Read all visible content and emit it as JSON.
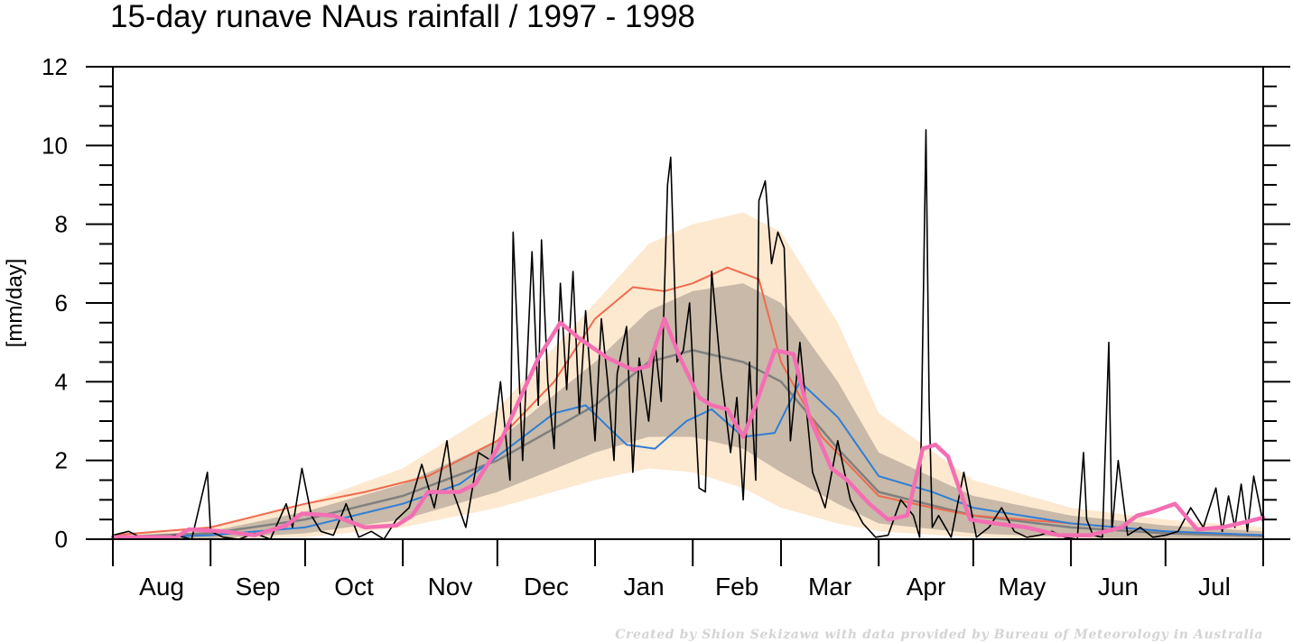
{
  "chart_data": {
    "type": "line",
    "title": "15-day runave NAus rainfall  /  1997 - 1998",
    "ylabel": "[mm/day]",
    "xlabel": "",
    "xlim": [
      0,
      365
    ],
    "ylim": [
      0,
      12
    ],
    "y_ticks": [
      0,
      2,
      4,
      6,
      8,
      10,
      12
    ],
    "y_tick_labels": [
      "0",
      "2",
      "4",
      "6",
      "8",
      "10",
      "12"
    ],
    "month_starts": [
      0,
      31,
      61,
      92,
      122,
      153,
      184,
      212,
      243,
      273,
      304,
      334,
      365
    ],
    "month_labels": [
      "Aug",
      "Sep",
      "Oct",
      "Nov",
      "Dec",
      "Jan",
      "Feb",
      "Mar",
      "Apr",
      "May",
      "Jun",
      "Jul"
    ],
    "credit": "Created by Shion Sekizawa with data provided by Bureau of Meteorology in Australia",
    "colors": {
      "outer_band": "#fde8d0",
      "inner_band": "#c8b9a8",
      "climatology_mean": "#808080",
      "upper_percentile": "#ef6b4f",
      "lower_percentile": "#2f7fd6",
      "runave": "#f46eb3",
      "daily": "#000000"
    },
    "bands": [
      {
        "name": "outer",
        "x": [
          0,
          31,
          61,
          92,
          122,
          153,
          170,
          184,
          200,
          212,
          230,
          243,
          273,
          304,
          334,
          365
        ],
        "upper": [
          0.1,
          0.3,
          0.9,
          1.8,
          3.3,
          6.0,
          7.5,
          8.0,
          8.3,
          7.8,
          5.5,
          3.2,
          1.5,
          0.8,
          0.5,
          0.3
        ],
        "lower": [
          0.0,
          0.0,
          0.05,
          0.3,
          0.8,
          1.5,
          1.8,
          1.7,
          1.3,
          0.8,
          0.4,
          0.2,
          0.05,
          0.0,
          0.0,
          0.0
        ]
      },
      {
        "name": "inner",
        "x": [
          0,
          31,
          61,
          92,
          122,
          153,
          170,
          184,
          200,
          212,
          230,
          243,
          273,
          304,
          334,
          365
        ],
        "upper": [
          0.08,
          0.2,
          0.7,
          1.4,
          2.5,
          4.5,
          5.8,
          6.3,
          6.5,
          6.0,
          4.0,
          2.2,
          1.1,
          0.6,
          0.35,
          0.2
        ],
        "lower": [
          0.0,
          0.02,
          0.15,
          0.5,
          1.2,
          2.2,
          2.6,
          2.6,
          2.3,
          1.7,
          0.9,
          0.4,
          0.15,
          0.05,
          0.0,
          0.0
        ]
      }
    ],
    "series": [
      {
        "name": "",
        "role": "climatology_mean",
        "x": [
          0,
          31,
          61,
          92,
          122,
          153,
          170,
          184,
          200,
          212,
          230,
          243,
          273,
          304,
          334,
          365
        ],
        "values": [
          0.05,
          0.15,
          0.5,
          1.1,
          2.0,
          3.4,
          4.5,
          4.8,
          4.5,
          4.0,
          2.3,
          1.2,
          0.6,
          0.3,
          0.15,
          0.08
        ]
      },
      {
        "name": "",
        "role": "upper_percentile",
        "x": [
          0,
          31,
          61,
          80,
          100,
          122,
          140,
          153,
          165,
          175,
          184,
          195,
          205,
          212,
          225,
          243,
          260,
          273,
          304,
          334,
          365
        ],
        "values": [
          0.1,
          0.3,
          0.9,
          1.2,
          1.6,
          2.5,
          4.0,
          5.6,
          6.4,
          6.3,
          6.5,
          6.9,
          6.6,
          4.5,
          2.6,
          1.1,
          0.8,
          0.6,
          0.4,
          0.2,
          0.1
        ]
      },
      {
        "name": "",
        "role": "lower_percentile",
        "x": [
          0,
          31,
          61,
          92,
          110,
          122,
          140,
          150,
          163,
          172,
          182,
          190,
          200,
          210,
          218,
          230,
          243,
          260,
          273,
          304,
          334,
          365
        ],
        "values": [
          0.02,
          0.1,
          0.3,
          0.9,
          1.4,
          2.1,
          3.2,
          3.4,
          2.4,
          2.3,
          3.0,
          3.3,
          2.6,
          2.7,
          4.0,
          3.1,
          1.6,
          1.2,
          0.8,
          0.4,
          0.2,
          0.1
        ]
      },
      {
        "name": "",
        "role": "runave",
        "x": [
          0,
          20,
          24,
          35,
          45,
          55,
          60,
          70,
          80,
          90,
          95,
          100,
          110,
          115,
          122,
          135,
          142,
          148,
          157,
          165,
          170,
          175,
          180,
          186,
          190,
          195,
          200,
          203,
          210,
          216,
          221,
          228,
          233,
          240,
          246,
          252,
          257,
          261,
          265,
          272,
          280,
          290,
          300,
          310,
          320,
          325,
          330,
          337,
          344,
          352,
          360,
          365
        ],
        "values": [
          0.05,
          0.05,
          0.25,
          0.2,
          0.1,
          0.35,
          0.65,
          0.6,
          0.3,
          0.35,
          0.6,
          1.2,
          1.2,
          1.4,
          2.3,
          4.6,
          5.5,
          5.1,
          4.6,
          4.3,
          4.4,
          5.6,
          4.6,
          3.6,
          3.4,
          3.3,
          2.6,
          3.2,
          4.8,
          4.7,
          3.1,
          1.8,
          1.5,
          0.9,
          0.5,
          0.6,
          2.3,
          2.4,
          2.1,
          0.5,
          0.4,
          0.3,
          0.1,
          0.1,
          0.3,
          0.6,
          0.7,
          0.9,
          0.25,
          0.3,
          0.45,
          0.55
        ]
      },
      {
        "name": "",
        "role": "daily",
        "x": [
          0,
          5,
          10,
          15,
          20,
          25,
          30,
          31,
          35,
          40,
          45,
          50,
          55,
          57,
          60,
          63,
          66,
          70,
          74,
          78,
          82,
          86,
          90,
          94,
          98,
          102,
          106,
          108,
          112,
          116,
          120,
          123,
          126,
          127,
          130,
          133,
          135,
          136,
          138,
          140,
          142,
          144,
          146,
          148,
          150,
          153,
          155,
          157,
          159,
          160,
          163,
          165,
          167,
          170,
          172,
          174,
          176,
          177,
          179,
          181,
          183,
          186,
          188,
          190,
          193,
          196,
          198,
          200,
          202,
          204,
          205,
          207,
          209,
          211,
          213,
          215,
          218,
          222,
          226,
          230,
          234,
          238,
          242,
          246,
          250,
          254,
          256,
          258,
          259,
          260,
          262,
          266,
          270,
          274,
          278,
          282,
          286,
          290,
          294,
          298,
          302,
          306,
          308,
          309,
          311,
          314,
          316,
          317,
          319,
          322,
          326,
          330,
          334,
          338,
          342,
          346,
          350,
          352,
          354,
          356,
          358,
          360,
          362,
          365
        ],
        "values": [
          0.1,
          0.2,
          0.0,
          0.05,
          0.1,
          0.0,
          1.7,
          0.2,
          0.05,
          0.0,
          0.15,
          0.0,
          0.9,
          0.3,
          1.8,
          0.6,
          0.2,
          0.1,
          0.9,
          0.05,
          0.2,
          0.0,
          0.5,
          0.8,
          1.9,
          0.8,
          2.5,
          1.2,
          0.3,
          2.2,
          2.0,
          4.0,
          1.5,
          7.8,
          2.0,
          7.3,
          3.4,
          7.6,
          4.0,
          2.3,
          6.5,
          3.8,
          6.8,
          3.2,
          5.8,
          2.5,
          5.6,
          4.0,
          2.0,
          4.2,
          5.4,
          1.7,
          4.6,
          3.0,
          5.0,
          3.5,
          9.0,
          9.7,
          4.5,
          4.8,
          6.0,
          1.3,
          1.2,
          6.8,
          4.2,
          2.2,
          3.6,
          1.0,
          4.5,
          1.5,
          8.6,
          9.1,
          7.0,
          7.8,
          7.4,
          2.5,
          5.0,
          1.7,
          0.8,
          2.5,
          1.0,
          0.4,
          0.05,
          0.1,
          1.0,
          0.6,
          0.05,
          10.4,
          3.5,
          0.3,
          0.6,
          0.05,
          1.7,
          0.05,
          0.3,
          0.8,
          0.2,
          0.05,
          0.1,
          0.2,
          0.05,
          0.0,
          2.2,
          0.5,
          0.1,
          0.05,
          5.0,
          0.2,
          2.0,
          0.1,
          0.3,
          0.05,
          0.1,
          0.2,
          0.8,
          0.3,
          1.3,
          0.2,
          1.1,
          0.3,
          1.4,
          0.2,
          1.6,
          0.4
        ]
      }
    ]
  }
}
